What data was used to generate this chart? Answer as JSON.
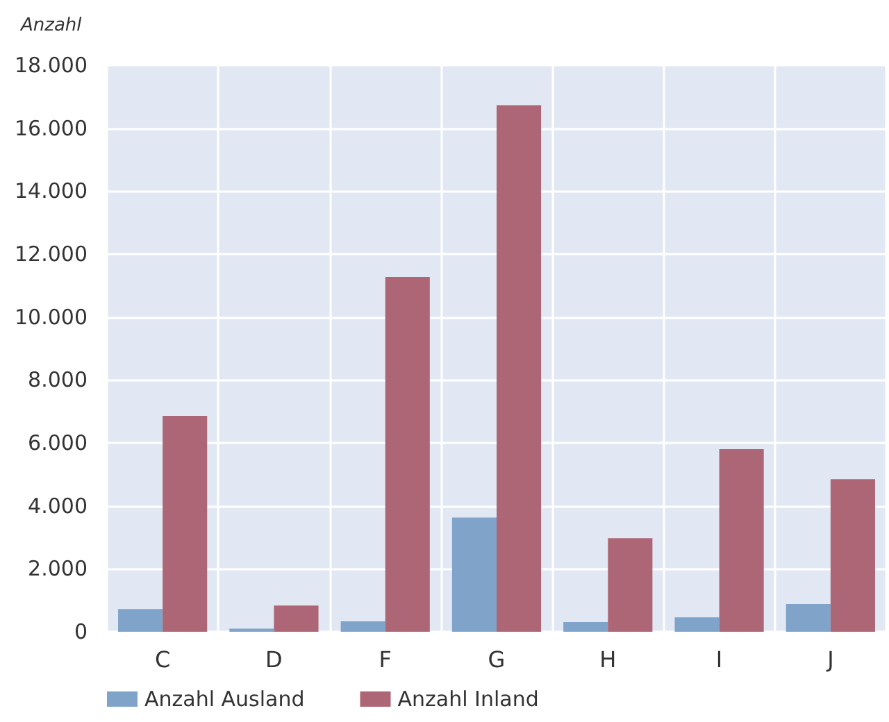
{
  "chart_data": {
    "type": "bar",
    "ylabel": "Anzahl",
    "categories": [
      "C",
      "D",
      "F",
      "G",
      "H",
      "I",
      "J"
    ],
    "series": [
      {
        "name": "Anzahl Ausland",
        "color": "#7fa3c9",
        "values": [
          720,
          100,
          330,
          3630,
          310,
          460,
          880
        ]
      },
      {
        "name": "Anzahl Inland",
        "color": "#ad6676",
        "values": [
          6860,
          830,
          11270,
          16730,
          2970,
          5800,
          4850
        ]
      }
    ],
    "ylim": [
      0,
      18000
    ],
    "yticks": [
      0,
      {
        "value": 2000,
        "label": "2.000"
      },
      {
        "value": 4000,
        "label": "4.000"
      },
      {
        "value": 6000,
        "label": "6.000"
      },
      {
        "value": 8000,
        "label": "8.000"
      },
      {
        "value": 10000,
        "label": "10.000"
      },
      {
        "value": 12000,
        "label": "12.000"
      },
      {
        "value": 14000,
        "label": "14.000"
      },
      {
        "value": 16000,
        "label": "16.000"
      },
      {
        "value": 18000,
        "label": "18.000"
      }
    ],
    "grid": true,
    "legend": "bottom left"
  }
}
